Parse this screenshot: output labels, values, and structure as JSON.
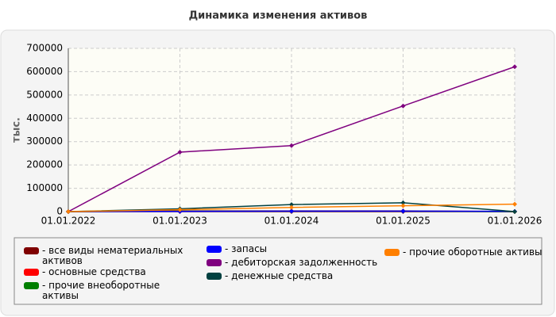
{
  "chart_data": {
    "type": "line",
    "title": "Динамика изменения активов",
    "y_label": "тыс.",
    "categories": [
      "01.01.2022",
      "01.01.2023",
      "01.01.2024",
      "01.01.2025",
      "01.01.2026"
    ],
    "ylim": [
      0,
      700000
    ],
    "yticks": [
      0,
      100000,
      200000,
      300000,
      400000,
      500000,
      600000,
      700000
    ],
    "grid": true,
    "series": [
      {
        "name": "- все виды нематериальных активов",
        "color": "#7f0000",
        "values": [
          0,
          0,
          0,
          0,
          0
        ]
      },
      {
        "name": "- основные средства",
        "color": "#ff0000",
        "values": [
          0,
          3000,
          3000,
          3000,
          0
        ]
      },
      {
        "name": "- прочие внеоборотные активы",
        "color": "#007f00",
        "values": [
          0,
          2000,
          2000,
          2000,
          0
        ]
      },
      {
        "name": "- запасы",
        "color": "#0000ff",
        "values": [
          0,
          1000,
          2000,
          2000,
          1000
        ]
      },
      {
        "name": "- дебиторская задолженность",
        "color": "#7f007f",
        "values": [
          0,
          255000,
          283000,
          453000,
          621000
        ]
      },
      {
        "name": "- денежные средства",
        "color": "#004040",
        "values": [
          0,
          12000,
          30000,
          38000,
          0
        ]
      },
      {
        "name": "- прочие оборотные активы",
        "color": "#ff7f00",
        "values": [
          0,
          8000,
          18000,
          25000,
          32000
        ]
      }
    ]
  }
}
